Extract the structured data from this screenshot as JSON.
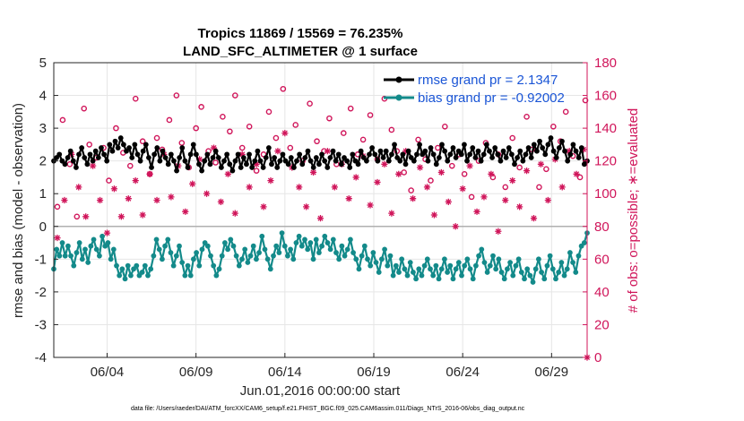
{
  "chart_data": {
    "type": "line",
    "title_line1": "Tropics 11869 / 15569 = 76.235%",
    "title_line2": "LAND_SFC_ALTIMETER @ 1 surface",
    "xlabel": "Jun.01,2016 00:00:00 start",
    "ylabel_left": "rmse and bias (model - observation)",
    "ylabel_right": "# of obs: o=possible; ∗=evaluated",
    "left_ylim": [
      -4,
      5
    ],
    "left_yticks": [
      "-4",
      "-3",
      "-2",
      "-1",
      "0",
      "1",
      "2",
      "3",
      "4",
      "5"
    ],
    "right_ylim": [
      0,
      180
    ],
    "right_yticks": [
      "0",
      "20",
      "40",
      "60",
      "80",
      "100",
      "120",
      "140",
      "160",
      "180"
    ],
    "xlim_days": [
      1.0,
      31.0
    ],
    "x_ticks": [
      {
        "day": 4,
        "label": "06/04"
      },
      {
        "day": 9,
        "label": "06/09"
      },
      {
        "day": 14,
        "label": "06/14"
      },
      {
        "day": 19,
        "label": "06/19"
      },
      {
        "day": 24,
        "label": "06/24"
      },
      {
        "day": 29,
        "label": "06/29"
      }
    ],
    "grid": true,
    "legend_position": "top-right",
    "footnote": "data file: /Users/raeder/DAI/ATM_forcXX/CAM6_setup/f.e21.FHIST_BGC.f09_025.CAM6assim.011/Diags_NTrS_2016-06/obs_diag_output.nc",
    "series": [
      {
        "name": "rmse grand pr = 2.1347",
        "axis": "left",
        "color": "#000000",
        "values": [
          2.0,
          2.1,
          2.2,
          2.0,
          1.9,
          2.1,
          2.3,
          2.0,
          1.8,
          2.2,
          2.4,
          2.1,
          1.9,
          2.2,
          2.0,
          2.3,
          2.1,
          2.4,
          2.2,
          2.0,
          2.5,
          2.3,
          2.6,
          2.4,
          2.7,
          2.5,
          2.3,
          2.4,
          2.1,
          2.5,
          2.2,
          2.0,
          2.3,
          2.5,
          2.1,
          1.8,
          2.2,
          2.4,
          2.0,
          2.3,
          2.1,
          1.9,
          2.2,
          2.0,
          1.7,
          2.1,
          2.4,
          2.0,
          1.8,
          2.2,
          2.5,
          2.2,
          1.9,
          1.7,
          2.0,
          2.2,
          1.9,
          2.1,
          2.3,
          2.1,
          1.8,
          2.0,
          2.2,
          1.9,
          1.7,
          2.0,
          2.2,
          1.8,
          2.1,
          1.9,
          2.2,
          1.8,
          2.0,
          2.3,
          2.0,
          1.8,
          2.1,
          2.4,
          1.9,
          2.1,
          1.8,
          2.0,
          2.2,
          2.0,
          1.9,
          2.1,
          1.8,
          2.0,
          2.2,
          1.9,
          2.1,
          2.3,
          2.0,
          1.8,
          2.1,
          1.9,
          2.2,
          2.0,
          1.8,
          2.1,
          2.3,
          2.0,
          2.2,
          1.9,
          2.1,
          2.0,
          1.8,
          2.2,
          2.0,
          1.9,
          2.3,
          2.1,
          2.0,
          2.2,
          2.4,
          2.2,
          2.0,
          2.3,
          2.1,
          2.3,
          2.0,
          2.2,
          2.5,
          2.1,
          2.0,
          2.2,
          1.9,
          2.3,
          2.1,
          2.0,
          2.2,
          2.5,
          2.2,
          2.3,
          2.0,
          2.4,
          2.2,
          1.9,
          2.1,
          2.5,
          2.3,
          2.0,
          2.2,
          2.4,
          2.1,
          2.3,
          2.2,
          2.5,
          2.0,
          2.2,
          2.4,
          2.1,
          2.3,
          2.0,
          2.2,
          2.5,
          2.3,
          2.1,
          2.4,
          2.2,
          2.0,
          2.3,
          2.1,
          2.4,
          2.2,
          1.9,
          2.1,
          2.3,
          2.0,
          2.2,
          2.4,
          2.1,
          2.5,
          2.3,
          2.6,
          2.4,
          2.2,
          2.5,
          2.7,
          2.3,
          2.1,
          2.4,
          2.6,
          2.3,
          2.0,
          2.2,
          2.5,
          2.3,
          2.1,
          2.4,
          1.9,
          2.0
        ]
      },
      {
        "name": "bias grand pr = -0.92002",
        "axis": "left",
        "color": "#138a8a",
        "values": [
          -1.3,
          -0.7,
          -0.9,
          -0.5,
          -0.9,
          -0.6,
          -0.9,
          -1.2,
          -0.8,
          -0.5,
          -1.0,
          -0.7,
          -1.1,
          -0.6,
          -0.4,
          -0.7,
          -0.9,
          -0.3,
          -0.6,
          -0.5,
          -1.0,
          -0.7,
          -1.2,
          -1.5,
          -1.3,
          -1.6,
          -1.2,
          -1.5,
          -1.3,
          -1.2,
          -1.5,
          -1.4,
          -1.2,
          -1.5,
          -1.3,
          -0.9,
          -0.4,
          -0.7,
          -1.0,
          -0.6,
          -0.4,
          -0.8,
          -1.2,
          -0.9,
          -0.6,
          -1.1,
          -1.5,
          -1.2,
          -1.5,
          -1.0,
          -0.8,
          -1.2,
          -0.7,
          -0.5,
          -0.6,
          -0.9,
          -1.2,
          -1.5,
          -1.3,
          -0.9,
          -0.5,
          -0.7,
          -0.4,
          -0.6,
          -0.9,
          -1.2,
          -1.0,
          -0.7,
          -1.1,
          -0.9,
          -0.6,
          -1.0,
          -0.8,
          -0.3,
          -0.7,
          -1.0,
          -1.3,
          -0.9,
          -0.6,
          -0.8,
          -0.2,
          -0.6,
          -0.9,
          -0.7,
          -1.0,
          -0.5,
          -0.3,
          -0.6,
          -0.4,
          -0.7,
          -0.5,
          -1.0,
          -0.4,
          -0.8,
          -0.6,
          -0.3,
          -0.5,
          -0.7,
          -0.4,
          -0.8,
          -1.0,
          -0.6,
          -0.9,
          -0.7,
          -0.4,
          -0.8,
          -1.0,
          -1.3,
          -0.9,
          -0.6,
          -1.0,
          -1.2,
          -0.8,
          -1.1,
          -1.4,
          -1.0,
          -0.7,
          -1.2,
          -0.9,
          -1.5,
          -1.2,
          -1.4,
          -1.0,
          -1.3,
          -1.5,
          -1.1,
          -1.4,
          -1.6,
          -1.3,
          -1.5,
          -1.2,
          -1.0,
          -1.3,
          -1.5,
          -1.2,
          -1.6,
          -1.3,
          -1.0,
          -1.4,
          -1.2,
          -1.6,
          -1.3,
          -1.1,
          -1.5,
          -1.2,
          -1.0,
          -1.3,
          -1.6,
          -1.2,
          -0.9,
          -0.7,
          -1.1,
          -1.4,
          -1.2,
          -0.9,
          -1.3,
          -1.0,
          -1.4,
          -1.6,
          -1.3,
          -1.1,
          -1.5,
          -1.2,
          -1.0,
          -1.4,
          -1.6,
          -1.3,
          -1.5,
          -1.7,
          -1.3,
          -1.0,
          -1.4,
          -1.6,
          -1.2,
          -0.9,
          -1.3,
          -1.6,
          -1.4,
          -1.1,
          -1.5,
          -1.3,
          -0.8,
          -1.1,
          -1.4,
          -0.9,
          -0.6,
          -0.5,
          -0.2
        ]
      }
    ],
    "counts_possible": [
      {
        "day": 1.2,
        "value": 92
      },
      {
        "day": 1.5,
        "value": 145
      },
      {
        "day": 1.9,
        "value": 118
      },
      {
        "day": 2.3,
        "value": 86
      },
      {
        "day": 2.7,
        "value": 152
      },
      {
        "day": 3.0,
        "value": 130
      },
      {
        "day": 3.4,
        "value": 122
      },
      {
        "day": 3.8,
        "value": 128
      },
      {
        "day": 4.1,
        "value": 108
      },
      {
        "day": 4.5,
        "value": 140
      },
      {
        "day": 4.9,
        "value": 125
      },
      {
        "day": 5.3,
        "value": 117
      },
      {
        "day": 5.6,
        "value": 158
      },
      {
        "day": 6.0,
        "value": 132
      },
      {
        "day": 6.4,
        "value": 112
      },
      {
        "day": 6.8,
        "value": 134
      },
      {
        "day": 7.1,
        "value": 127
      },
      {
        "day": 7.5,
        "value": 145
      },
      {
        "day": 7.9,
        "value": 160
      },
      {
        "day": 8.2,
        "value": 131
      },
      {
        "day": 8.6,
        "value": 116
      },
      {
        "day": 9.0,
        "value": 140
      },
      {
        "day": 9.3,
        "value": 153
      },
      {
        "day": 9.7,
        "value": 126
      },
      {
        "day": 10.1,
        "value": 119
      },
      {
        "day": 10.5,
        "value": 147
      },
      {
        "day": 10.9,
        "value": 138
      },
      {
        "day": 11.2,
        "value": 160
      },
      {
        "day": 11.6,
        "value": 128
      },
      {
        "day": 12.0,
        "value": 141
      },
      {
        "day": 12.4,
        "value": 114
      },
      {
        "day": 12.8,
        "value": 124
      },
      {
        "day": 13.1,
        "value": 150
      },
      {
        "day": 13.5,
        "value": 134
      },
      {
        "day": 13.9,
        "value": 164
      },
      {
        "day": 14.3,
        "value": 128
      },
      {
        "day": 14.6,
        "value": 142
      },
      {
        "day": 15.0,
        "value": 120
      },
      {
        "day": 15.4,
        "value": 155
      },
      {
        "day": 15.8,
        "value": 132
      },
      {
        "day": 16.2,
        "value": 126
      },
      {
        "day": 16.5,
        "value": 146
      },
      {
        "day": 16.9,
        "value": 118
      },
      {
        "day": 17.3,
        "value": 137
      },
      {
        "day": 17.7,
        "value": 152
      },
      {
        "day": 18.1,
        "value": 124
      },
      {
        "day": 18.4,
        "value": 133
      },
      {
        "day": 18.8,
        "value": 148
      },
      {
        "day": 19.2,
        "value": 121
      },
      {
        "day": 19.6,
        "value": 158
      },
      {
        "day": 20.0,
        "value": 139
      },
      {
        "day": 20.3,
        "value": 126
      },
      {
        "day": 20.7,
        "value": 113
      },
      {
        "day": 21.1,
        "value": 102
      },
      {
        "day": 21.5,
        "value": 133
      },
      {
        "day": 21.9,
        "value": 121
      },
      {
        "day": 22.2,
        "value": 108
      },
      {
        "day": 22.6,
        "value": 128
      },
      {
        "day": 23.0,
        "value": 141
      },
      {
        "day": 23.4,
        "value": 117
      },
      {
        "day": 23.8,
        "value": 124
      },
      {
        "day": 24.1,
        "value": 112
      },
      {
        "day": 24.5,
        "value": 98
      },
      {
        "day": 24.9,
        "value": 120
      },
      {
        "day": 25.3,
        "value": 131
      },
      {
        "day": 25.7,
        "value": 110
      },
      {
        "day": 26.0,
        "value": 124
      },
      {
        "day": 26.4,
        "value": 104
      },
      {
        "day": 26.8,
        "value": 134
      },
      {
        "day": 27.2,
        "value": 116
      },
      {
        "day": 27.6,
        "value": 147
      },
      {
        "day": 27.9,
        "value": 127
      },
      {
        "day": 28.3,
        "value": 104
      },
      {
        "day": 28.7,
        "value": 115
      },
      {
        "day": 29.1,
        "value": 141
      },
      {
        "day": 29.5,
        "value": 132
      },
      {
        "day": 29.8,
        "value": 150
      },
      {
        "day": 30.2,
        "value": 123
      },
      {
        "day": 30.6,
        "value": 110
      },
      {
        "day": 30.9,
        "value": 157
      }
    ],
    "counts_evaluated": [
      {
        "day": 1.2,
        "value": 73
      },
      {
        "day": 1.6,
        "value": 96
      },
      {
        "day": 2.0,
        "value": 124
      },
      {
        "day": 2.4,
        "value": 104
      },
      {
        "day": 2.8,
        "value": 86
      },
      {
        "day": 3.2,
        "value": 117
      },
      {
        "day": 3.6,
        "value": 96
      },
      {
        "day": 4.0,
        "value": 76
      },
      {
        "day": 4.4,
        "value": 103
      },
      {
        "day": 4.8,
        "value": 86
      },
      {
        "day": 5.2,
        "value": 97
      },
      {
        "day": 5.6,
        "value": 108
      },
      {
        "day": 6.0,
        "value": 87
      },
      {
        "day": 6.4,
        "value": 112
      },
      {
        "day": 6.8,
        "value": 96
      },
      {
        "day": 7.2,
        "value": 124
      },
      {
        "day": 7.6,
        "value": 98
      },
      {
        "day": 8.0,
        "value": 117
      },
      {
        "day": 8.4,
        "value": 89
      },
      {
        "day": 8.8,
        "value": 106
      },
      {
        "day": 9.2,
        "value": 121
      },
      {
        "day": 9.6,
        "value": 100
      },
      {
        "day": 10.0,
        "value": 128
      },
      {
        "day": 10.4,
        "value": 95
      },
      {
        "day": 10.8,
        "value": 112
      },
      {
        "day": 11.2,
        "value": 88
      },
      {
        "day": 11.6,
        "value": 124
      },
      {
        "day": 12.0,
        "value": 104
      },
      {
        "day": 12.4,
        "value": 118
      },
      {
        "day": 12.8,
        "value": 92
      },
      {
        "day": 13.2,
        "value": 108
      },
      {
        "day": 13.6,
        "value": 126
      },
      {
        "day": 14.0,
        "value": 137
      },
      {
        "day": 14.4,
        "value": 116
      },
      {
        "day": 14.8,
        "value": 104
      },
      {
        "day": 15.2,
        "value": 92
      },
      {
        "day": 15.6,
        "value": 113
      },
      {
        "day": 16.0,
        "value": 85
      },
      {
        "day": 16.4,
        "value": 126
      },
      {
        "day": 16.8,
        "value": 104
      },
      {
        "day": 17.2,
        "value": 118
      },
      {
        "day": 17.6,
        "value": 97
      },
      {
        "day": 18.0,
        "value": 110
      },
      {
        "day": 18.4,
        "value": 123
      },
      {
        "day": 18.8,
        "value": 93
      },
      {
        "day": 19.2,
        "value": 107
      },
      {
        "day": 19.6,
        "value": 118
      },
      {
        "day": 20.0,
        "value": 88
      },
      {
        "day": 20.4,
        "value": 112
      },
      {
        "day": 20.8,
        "value": 126
      },
      {
        "day": 21.2,
        "value": 97
      },
      {
        "day": 21.6,
        "value": 116
      },
      {
        "day": 22.0,
        "value": 104
      },
      {
        "day": 22.4,
        "value": 87
      },
      {
        "day": 22.8,
        "value": 113
      },
      {
        "day": 23.2,
        "value": 95
      },
      {
        "day": 23.6,
        "value": 80
      },
      {
        "day": 24.0,
        "value": 103
      },
      {
        "day": 24.4,
        "value": 117
      },
      {
        "day": 24.8,
        "value": 89
      },
      {
        "day": 25.2,
        "value": 98
      },
      {
        "day": 25.6,
        "value": 112
      },
      {
        "day": 26.0,
        "value": 77
      },
      {
        "day": 26.4,
        "value": 96
      },
      {
        "day": 26.8,
        "value": 108
      },
      {
        "day": 27.2,
        "value": 92
      },
      {
        "day": 27.6,
        "value": 114
      },
      {
        "day": 28.0,
        "value": 85
      },
      {
        "day": 28.4,
        "value": 118
      },
      {
        "day": 28.8,
        "value": 96
      },
      {
        "day": 29.2,
        "value": 121
      },
      {
        "day": 29.6,
        "value": 104
      },
      {
        "day": 30.0,
        "value": 126
      },
      {
        "day": 30.4,
        "value": 112
      },
      {
        "day": 30.8,
        "value": 127
      },
      {
        "day": 31.0,
        "value": 0
      }
    ]
  }
}
